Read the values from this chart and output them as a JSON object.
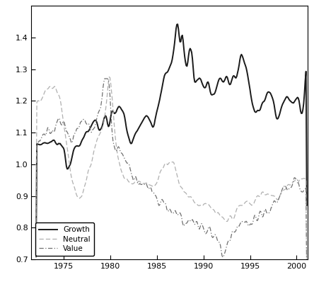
{
  "title": "",
  "xlabel": "",
  "ylabel": "",
  "xlim": [
    1971.5,
    2001.2
  ],
  "ylim": [
    0.7,
    1.5
  ],
  "yticks": [
    0.7,
    0.8,
    0.9,
    1.0,
    1.1,
    1.2,
    1.3,
    1.4
  ],
  "xticks": [
    1975,
    1980,
    1985,
    1990,
    1995,
    2000
  ],
  "legend_labels": [
    "Growth",
    "Neutral",
    "Value"
  ],
  "growth_color": "#1a1a1a",
  "neutral_color": "#b0b0b0",
  "value_color": "#707070",
  "background_color": "#ffffff",
  "figsize": [
    4.44,
    3.98
  ],
  "dpi": 100
}
